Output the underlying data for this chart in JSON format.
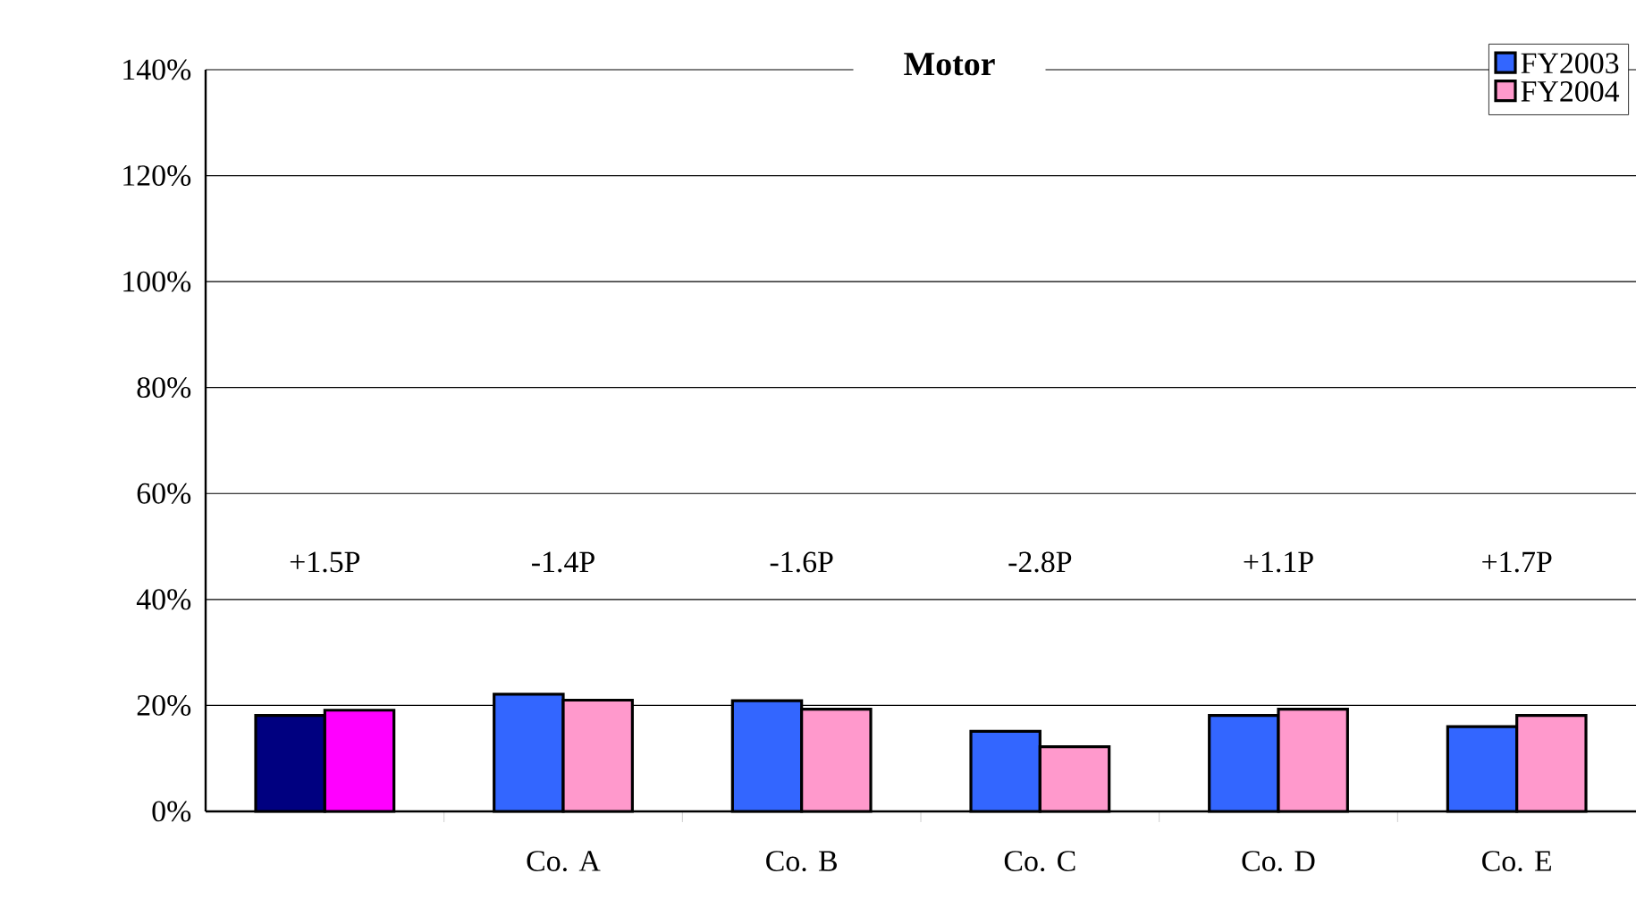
{
  "chart_data": {
    "type": "bar",
    "title": "Motor",
    "categories": [
      null,
      "Co. A",
      "Co. B",
      "Co. C",
      "Co. D",
      "Co. E"
    ],
    "series": [
      {
        "name": "FY2003",
        "color": "#3366ff",
        "colors": [
          "#000080",
          "#3366ff",
          "#3366ff",
          "#3366ff",
          "#3366ff",
          "#3366ff"
        ],
        "values": [
          18.1,
          22.1,
          20.9,
          15.1,
          18.1,
          16.0
        ]
      },
      {
        "name": "FY2004",
        "color": "#ff99cc",
        "colors": [
          "#ff00ff",
          "#ff99cc",
          "#ff99cc",
          "#ff99cc",
          "#ff99cc",
          "#ff99cc"
        ],
        "values": [
          19.1,
          21.0,
          19.3,
          12.2,
          19.3,
          18.1
        ]
      }
    ],
    "ylim": [
      0,
      140
    ],
    "yticks": [
      {
        "value": 0,
        "label": "0%"
      },
      {
        "value": 20,
        "label": "20%"
      },
      {
        "value": 40,
        "label": "40%"
      },
      {
        "value": 60,
        "label": "60%"
      },
      {
        "value": 80,
        "label": "80%"
      },
      {
        "value": 100,
        "label": "100%"
      },
      {
        "value": 120,
        "label": "120%"
      },
      {
        "value": 140,
        "label": "140%"
      }
    ],
    "annotations": [
      "+1.5P",
      "-1.4P",
      "-1.6P",
      "-2.8P",
      "+1.1P",
      "+1.7P"
    ],
    "grid": "y",
    "legend": "top right"
  }
}
